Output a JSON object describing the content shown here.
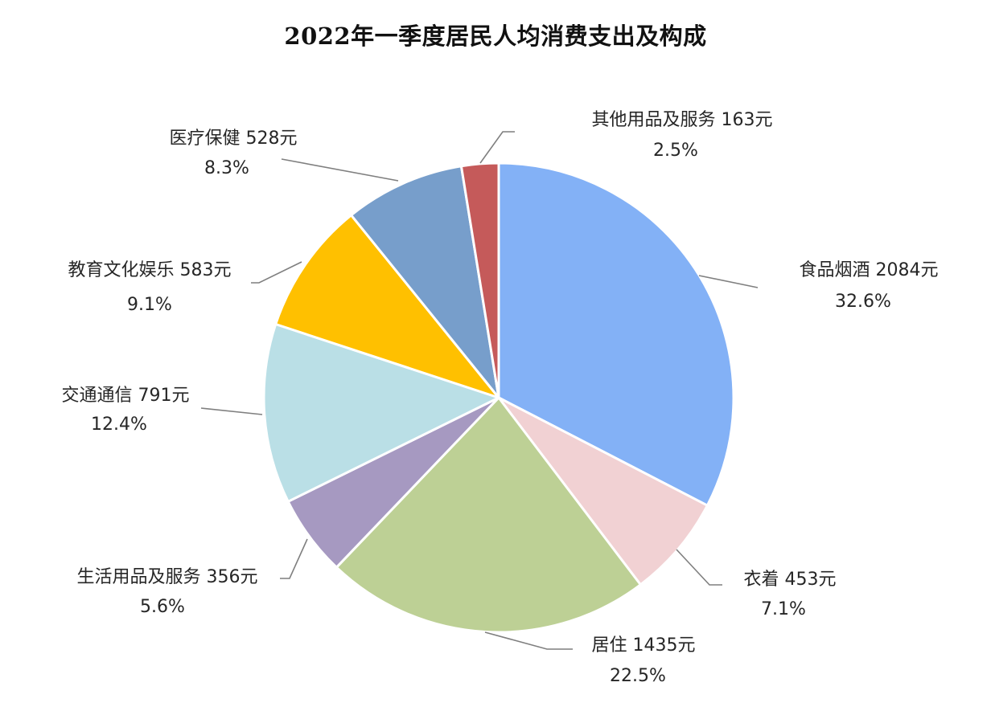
{
  "chart_data": {
    "type": "pie",
    "title": "2022年一季度居民人均消费支出及构成",
    "slices": [
      {
        "category": "食品烟酒",
        "amount": "2084元",
        "value": 2084,
        "percent": "32.6%",
        "color": "#83b1f6"
      },
      {
        "category": "衣着",
        "amount": "453元",
        "value": 453,
        "percent": "7.1%",
        "color": "#f1d1d3"
      },
      {
        "category": "居住",
        "amount": "1435元",
        "value": 1435,
        "percent": "22.5%",
        "color": "#bdd095"
      },
      {
        "category": "生活用品及服务",
        "amount": "356元",
        "value": 356,
        "percent": "5.6%",
        "color": "#a699c1"
      },
      {
        "category": "交通通信",
        "amount": "791元",
        "value": 791,
        "percent": "12.4%",
        "color": "#badfe6"
      },
      {
        "category": "教育文化娱乐",
        "amount": "583元",
        "value": 583,
        "percent": "9.1%",
        "color": "#ffc000"
      },
      {
        "category": "医疗保健",
        "amount": "528元",
        "value": 528,
        "percent": "8.3%",
        "color": "#779ecb"
      },
      {
        "category": "其他用品及服务",
        "amount": "163元",
        "value": 163,
        "percent": "2.5%",
        "color": "#c55a5a"
      }
    ]
  }
}
